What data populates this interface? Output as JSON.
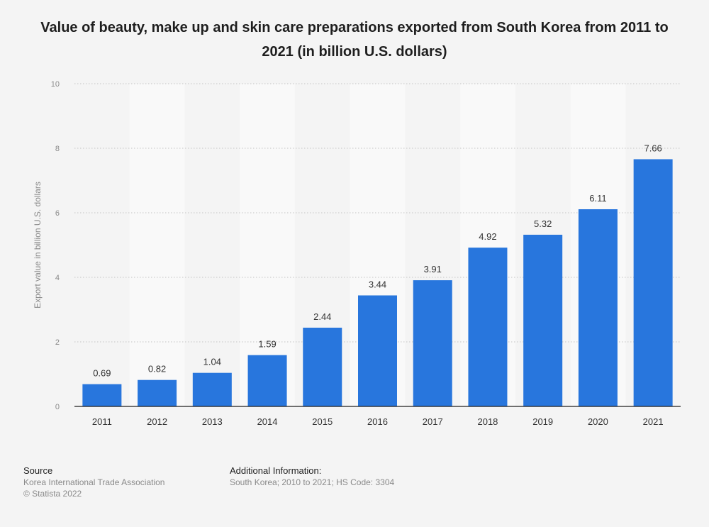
{
  "chart_data": {
    "type": "bar",
    "title": "Value of beauty, make up and skin care preparations exported from South Korea from 2011 to 2021 (in billion U.S. dollars)",
    "xlabel": "",
    "ylabel": "Export value in billion U.S. dollars",
    "categories": [
      "2011",
      "2012",
      "2013",
      "2014",
      "2015",
      "2016",
      "2017",
      "2018",
      "2019",
      "2020",
      "2021"
    ],
    "values": [
      0.69,
      0.82,
      1.04,
      1.59,
      2.44,
      3.44,
      3.91,
      4.92,
      5.32,
      6.11,
      7.66
    ],
    "data_labels": [
      "0.69",
      "0.82",
      "1.04",
      "1.59",
      "2.44",
      "3.44",
      "3.91",
      "4.92",
      "5.32",
      "6.11",
      "7.66"
    ],
    "ylim": [
      0,
      10
    ],
    "yticks": [
      0,
      2,
      4,
      6,
      8,
      10
    ],
    "ytick_labels": [
      "0",
      "2",
      "4",
      "6",
      "8",
      "10"
    ],
    "grid": true,
    "legend": "none",
    "colors": {
      "bar": "#2876dd",
      "band": "#f9f9f9",
      "grid": "#c4c4c4",
      "axis": "#1e1e1e",
      "text": "#333333",
      "muted": "#8a8a8a"
    }
  },
  "footer": {
    "source_heading": "Source",
    "source_lines": [
      "Korea International Trade Association",
      "© Statista 2022"
    ],
    "info_heading": "Additional Information:",
    "info_lines": [
      "South Korea; 2010 to 2021; HS Code: 3304"
    ]
  }
}
